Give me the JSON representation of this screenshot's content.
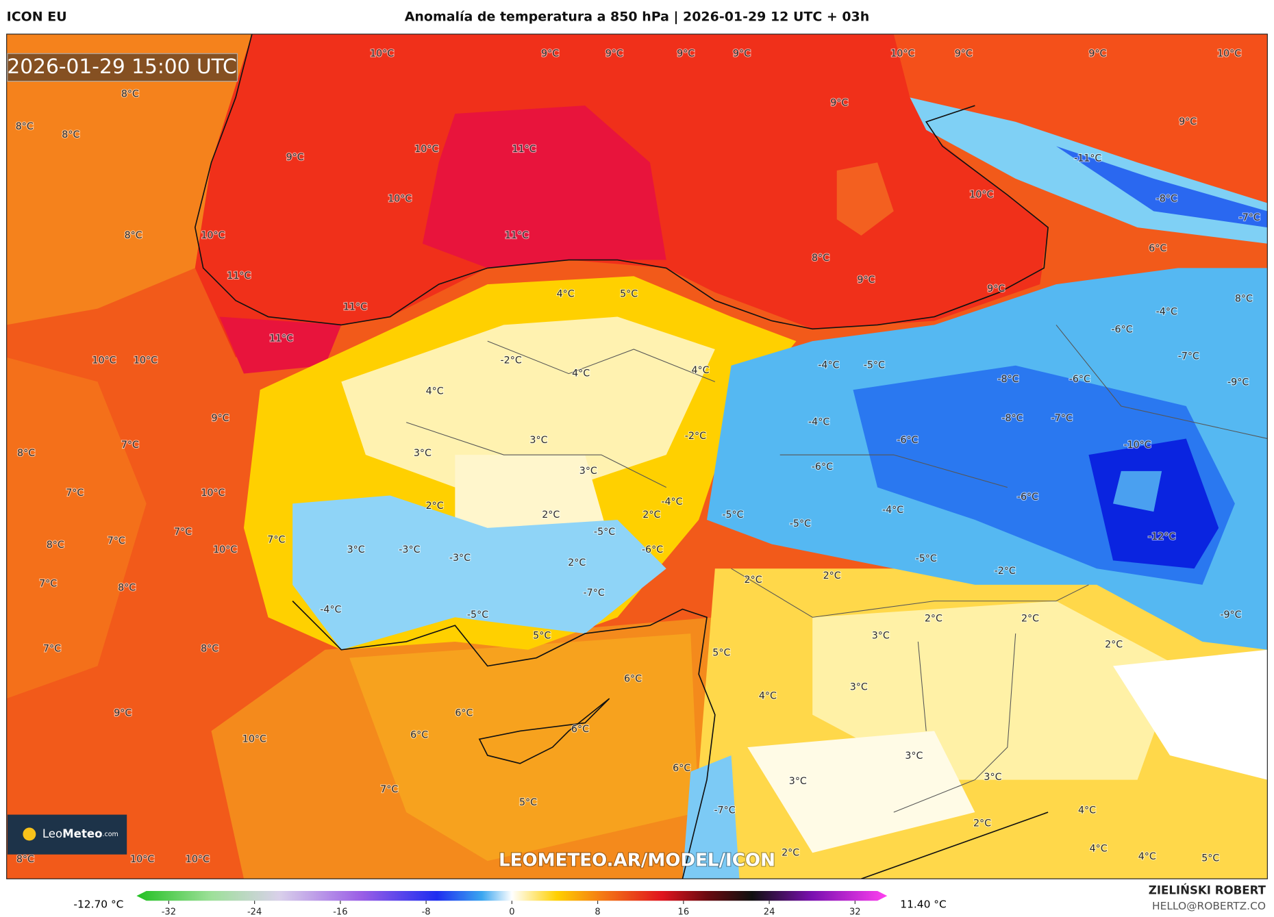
{
  "header": {
    "model": "ICON EU",
    "title": "Anomalía de temperatura a 850 hPa | 2026-01-29 12 UTC + 03h"
  },
  "map": {
    "valid_time": "2026-01-29 15:00 UTC",
    "labels": [
      "10°C",
      "9°C",
      "9°C",
      "9°C",
      "9°C",
      "10°C",
      "9°C",
      "9°C",
      "10°C",
      "8°C",
      "8°C",
      "8°C",
      "9°C",
      "9°C",
      "10°C",
      "11°C",
      "9°C",
      "-11°C",
      "10°C",
      "10°C",
      "-8°C",
      "-7°C",
      "8°C",
      "10°C",
      "11°C",
      "6°C",
      "11°C",
      "8°C",
      "9°C",
      "9°C",
      "4°C",
      "5°C",
      "8°C",
      "11°C",
      "-4°C",
      "11°C",
      "-6°C",
      "10°C",
      "10°C",
      "-2°C",
      "-4°C",
      "-5°C",
      "-7°C",
      "4°C",
      "4°C",
      "-8°C",
      "-6°C",
      "-9°C",
      "4°C",
      "9°C",
      "-4°C",
      "-8°C",
      "-7°C",
      "3°C",
      "-2°C",
      "-6°C",
      "-10°C",
      "7°C",
      "3°C",
      "8°C",
      "3°C",
      "-6°C",
      "7°C",
      "10°C",
      "-6°C",
      "2°C",
      "-4°C",
      "2°C",
      "2°C",
      "-5°C",
      "-4°C",
      "-5°C",
      "7°C",
      "-5°C",
      "-12°C",
      "8°C",
      "7°C",
      "7°C",
      "10°C",
      "3°C",
      "-3°C",
      "-6°C",
      "-3°C",
      "-5°C",
      "2°C",
      "-2°C",
      "7°C",
      "8°C",
      "2°C",
      "2°C",
      "-7°C",
      "-4°C",
      "-5°C",
      "2°C",
      "2°C",
      "-9°C",
      "3°C",
      "5°C",
      "2°C",
      "7°C",
      "8°C",
      "5°C",
      "6°C",
      "3°C",
      "4°C",
      "6°C",
      "9°C",
      "6°C",
      "6°C",
      "10°C",
      "3°C",
      "3°C",
      "6°C",
      "3°C",
      "7°C",
      "5°C",
      "4°C",
      "-7°C",
      "2°C",
      "4°C",
      "2°C",
      "4°C",
      "5°C",
      "8°C",
      "10°C",
      "10°C"
    ],
    "watermark": "LEOMETEO.AR/MODEL/ICON",
    "logo": {
      "leo": "Leo",
      "meteo": "Meteo",
      "tld": ".com"
    }
  },
  "colorbar": {
    "range": [
      -35,
      35
    ],
    "ticks": [
      -32,
      -24,
      -16,
      -8,
      0,
      8,
      16,
      24,
      32
    ],
    "min_label": "-12.70 °C",
    "max_label": "11.40 °C"
  },
  "footer": {
    "author": "ZIELIŃSKI ROBERT",
    "email": "HELLO@ROBERTZ.CO"
  }
}
